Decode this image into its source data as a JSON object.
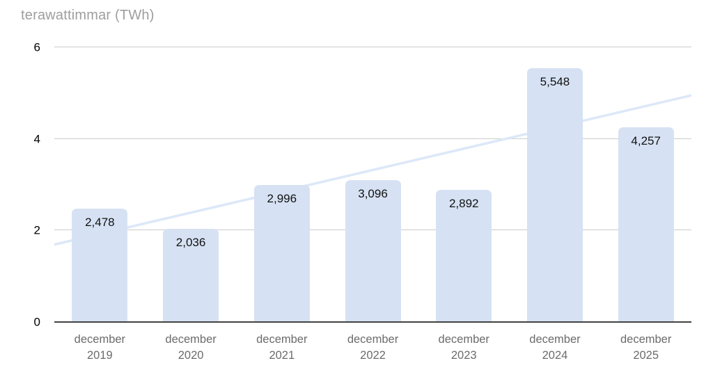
{
  "chart_data": {
    "type": "bar",
    "title": "terawattimmar (TWh)",
    "categories": [
      "december 2019",
      "december 2020",
      "december 2021",
      "december 2022",
      "december 2023",
      "december 2024",
      "december 2025"
    ],
    "values": [
      2.478,
      2.036,
      2.996,
      3.096,
      2.892,
      5.548,
      4.257
    ],
    "value_labels": [
      "2,478",
      "2,036",
      "2,996",
      "3,096",
      "2,892",
      "5,548",
      "4,257"
    ],
    "xlabel": "",
    "ylabel": "",
    "ylim": [
      0,
      6
    ],
    "yticks": [
      0,
      2,
      4,
      6
    ],
    "grid": true,
    "legend_position": "none",
    "trendline": {
      "start_value": 1.69,
      "end_value": 4.95
    },
    "colors": {
      "bar_fill": "#d6e2f3",
      "trendline": "#dce8f8",
      "gridline": "#cccccc",
      "axis_line": "#424242",
      "title_text": "#9e9e9e",
      "tick_text": "#000000",
      "value_text": "#111111",
      "category_text": "#6b6b6b",
      "background": "#ffffff"
    }
  }
}
